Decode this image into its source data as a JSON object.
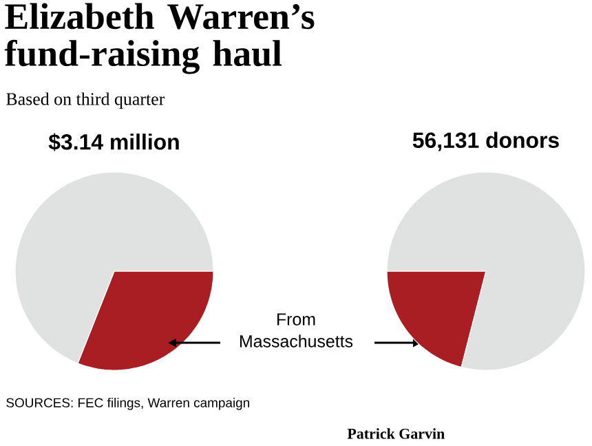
{
  "chart_data": [
    {
      "type": "other",
      "title": "Elizabeth Warren’s fund-raising haul",
      "subtitle": "Based on third quarter",
      "annotations": [
        "SOURCES: FEC filings, Warren campaign",
        "Patrick Garvin"
      ]
    },
    {
      "type": "pie",
      "title": "$3.14 million",
      "categories": [
        null,
        null
      ],
      "values": [
        31,
        69
      ],
      "colors": [
        "#a81e22",
        "#e0e1e1"
      ],
      "annotations": [
        "From Massachusetts"
      ]
    },
    {
      "type": "pie",
      "title": "56,131 donors",
      "categories": [
        null,
        null
      ],
      "values": [
        21,
        79
      ],
      "colors": [
        "#a81e22",
        "#e0e1e1"
      ]
    }
  ]
}
